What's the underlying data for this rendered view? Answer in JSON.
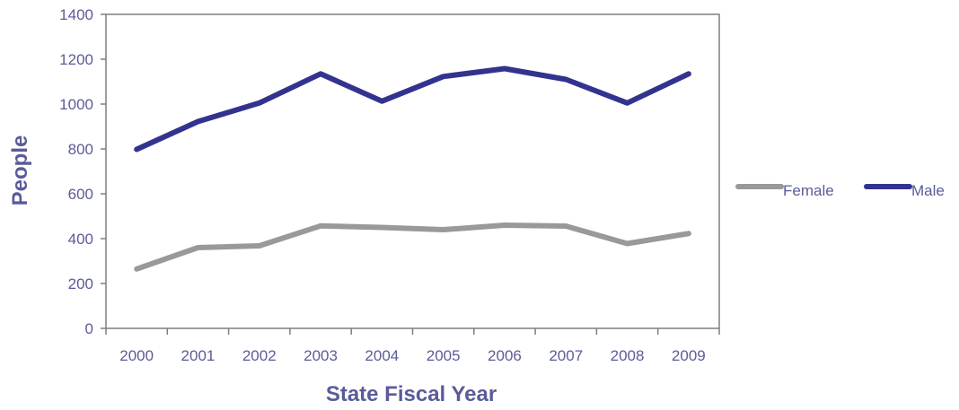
{
  "chart_data": {
    "type": "line",
    "title": "",
    "xlabel": "State Fiscal Year",
    "ylabel": "People",
    "categories": [
      "2000",
      "2001",
      "2002",
      "2003",
      "2004",
      "2005",
      "2006",
      "2007",
      "2008",
      "2009"
    ],
    "ylim": [
      0,
      1400
    ],
    "yticks": [
      0,
      200,
      400,
      600,
      800,
      1000,
      1200,
      1400
    ],
    "grid": false,
    "legend_position": "right",
    "series": [
      {
        "name": "Female",
        "color": "#999999",
        "values": [
          265,
          360,
          368,
          457,
          450,
          440,
          460,
          456,
          378,
          423
        ]
      },
      {
        "name": "Male",
        "color": "#33338f",
        "values": [
          798,
          922,
          1005,
          1135,
          1013,
          1123,
          1158,
          1110,
          1005,
          1135
        ]
      }
    ],
    "text_color": "#5b5b99",
    "axis_color": "#7f7f7f"
  }
}
